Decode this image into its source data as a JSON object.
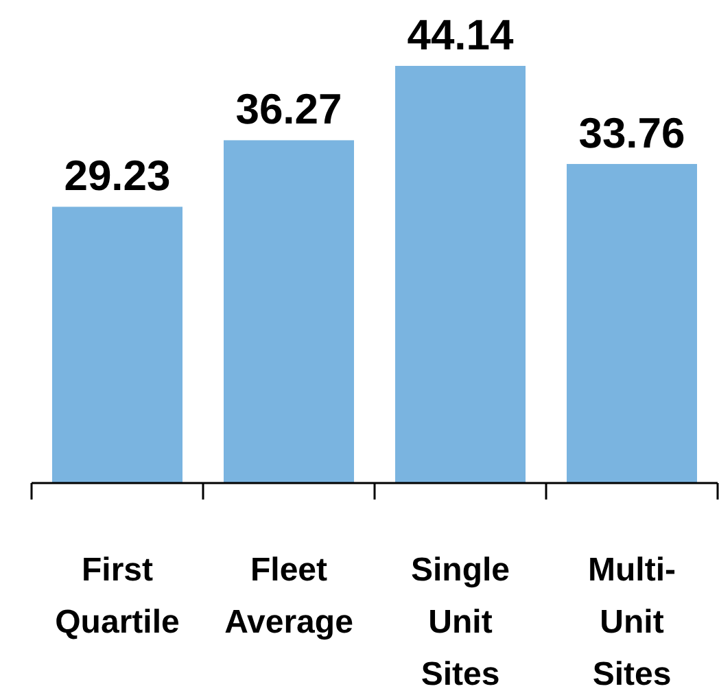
{
  "chart_data": {
    "type": "bar",
    "categories": [
      "First Quartile",
      "Fleet Average",
      "Single Unit Sites",
      "Multi-Unit Sites"
    ],
    "values": [
      29.23,
      36.27,
      44.14,
      33.76
    ],
    "color": "#7ab4e0",
    "data_labels": true,
    "tick_labels": "x"
  }
}
